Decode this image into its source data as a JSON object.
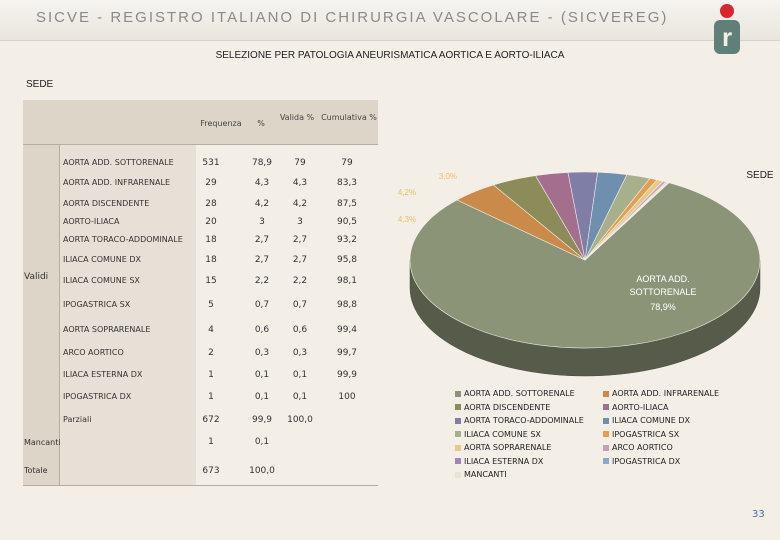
{
  "header": {
    "title": "SICVE - REGISTRO ITALIANO DI CHIRURGIA VASCOLARE - (SICVEREG)",
    "logo_letters": "r"
  },
  "subtitle": "SELEZIONE PER PATOLOGIA ANEURISMATICA AORTICA E AORTO-ILIACA",
  "section_label": "SEDE",
  "table": {
    "headers": {
      "freq": "Frequenza",
      "pct": "%",
      "valid": "Valida %",
      "cum": "Cumulativa %"
    },
    "group_valid": "Validi",
    "group_missing": "Mancanti",
    "group_total": "Totale",
    "rows": [
      {
        "label": "AORTA ADD. SOTTORENALE",
        "freq": "531",
        "pct": "78,9",
        "valid": "79",
        "cum": "79"
      },
      {
        "label": "AORTA ADD. INFRARENALE",
        "freq": "29",
        "pct": "4,3",
        "valid": "4,3",
        "cum": "83,3"
      },
      {
        "label": "AORTA DISCENDENTE",
        "freq": "28",
        "pct": "4,2",
        "valid": "4,2",
        "cum": "87,5"
      },
      {
        "label": "AORTO-ILIACA",
        "freq": "20",
        "pct": "3",
        "valid": "3",
        "cum": "90,5"
      },
      {
        "label": "AORTA TORACO-ADDOMINALE",
        "freq": "18",
        "pct": "2,7",
        "valid": "2,7",
        "cum": "93,2"
      },
      {
        "label": "ILIACA COMUNE DX",
        "freq": "18",
        "pct": "2,7",
        "valid": "2,7",
        "cum": "95,8"
      },
      {
        "label": "ILIACA COMUNE SX",
        "freq": "15",
        "pct": "2,2",
        "valid": "2,2",
        "cum": "98,1"
      },
      {
        "label": "IPOGASTRICA SX",
        "freq": "5",
        "pct": "0,7",
        "valid": "0,7",
        "cum": "98,8"
      },
      {
        "label": "AORTA SOPRARENALE",
        "freq": "4",
        "pct": "0,6",
        "valid": "0,6",
        "cum": "99,4"
      },
      {
        "label": "ARCO AORTICO",
        "freq": "2",
        "pct": "0,3",
        "valid": "0,3",
        "cum": "99,7"
      },
      {
        "label": "ILIACA ESTERNA DX",
        "freq": "1",
        "pct": "0,1",
        "valid": "0,1",
        "cum": "99,9"
      },
      {
        "label": "IPOGASTRICA DX",
        "freq": "1",
        "pct": "0,1",
        "valid": "0,1",
        "cum": "100"
      },
      {
        "label": "Parziali",
        "freq": "672",
        "pct": "99,9",
        "valid": "100,0",
        "cum": ""
      }
    ],
    "missing": {
      "freq": "1",
      "pct": "0,1"
    },
    "total": {
      "freq": "673",
      "pct": "100,0"
    }
  },
  "chart_data": {
    "type": "pie",
    "title": "SEDE",
    "categories": [
      "AORTA ADD. SOTTORENALE",
      "AORTA ADD. INFRARENALE",
      "AORTA DISCENDENTE",
      "AORTO-ILIACA",
      "AORTA TORACO-ADDOMINALE",
      "ILIACA COMUNE DX",
      "ILIACA COMUNE SX",
      "IPOGASTRICA SX",
      "AORTA SOPRARENALE",
      "ARCO AORTICO",
      "ILIACA ESTERNA DX",
      "IPOGASTRICA DX",
      "MANCANTI"
    ],
    "values": [
      78.9,
      4.3,
      4.2,
      3.0,
      2.7,
      2.7,
      2.2,
      0.7,
      0.6,
      0.3,
      0.1,
      0.1,
      0.1
    ],
    "colors": [
      "#8c9478",
      "#c98a4a",
      "#8c8c5a",
      "#a46e8e",
      "#7e7ea6",
      "#6e8fae",
      "#a7b08a",
      "#e0a050",
      "#e7c989",
      "#c9a0b8",
      "#9b86b8",
      "#8aa8c8",
      "#e8e4d0"
    ],
    "main_label": {
      "name": "AORTA ADD. SOTTORENALE",
      "pct": "78,9%"
    },
    "small_labels": [
      "4,3%",
      "4,2%",
      "3,0%"
    ]
  },
  "page_number": "33"
}
